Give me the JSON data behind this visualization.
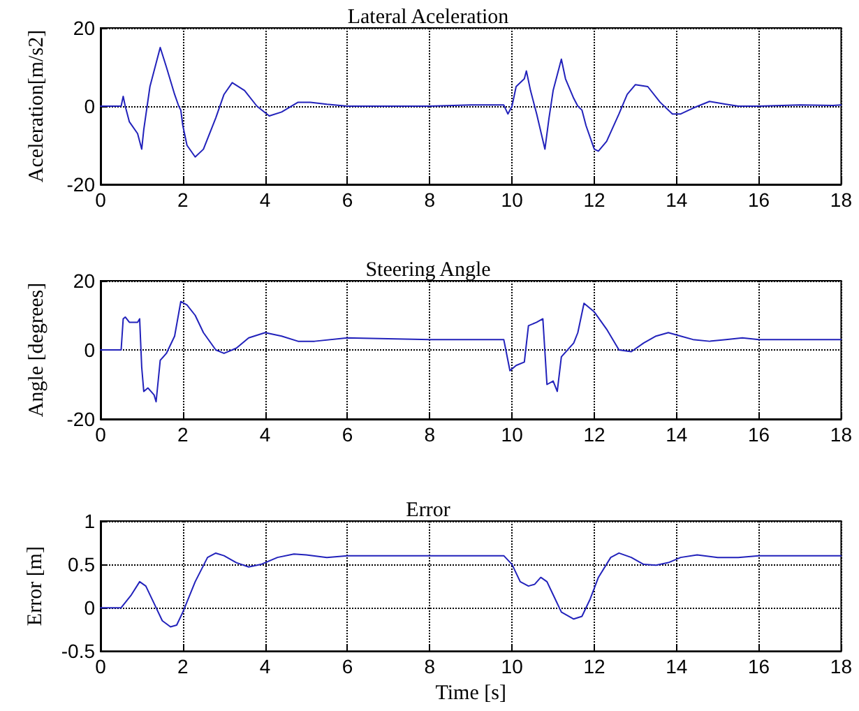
{
  "chart_data": [
    {
      "type": "line",
      "title": "Lateral Aceleration",
      "ylabel": "Aceleration[m/s2]",
      "xlim": [
        0,
        18
      ],
      "xticks": [
        0,
        2,
        4,
        6,
        8,
        10,
        12,
        14,
        16,
        18
      ],
      "ylim": [
        -20,
        20
      ],
      "yticks": [
        -20,
        0,
        20
      ],
      "grid": true,
      "marker": "none",
      "line_style": "solid",
      "series": [
        {
          "color": "#2222bb",
          "x": [
            0,
            0.5,
            0.55,
            0.6,
            0.7,
            0.9,
            1.0,
            1.05,
            1.2,
            1.45,
            1.6,
            1.8,
            1.9,
            1.95,
            2.0,
            2.1,
            2.3,
            2.5,
            2.8,
            3.0,
            3.2,
            3.5,
            3.8,
            4.1,
            4.4,
            4.8,
            5.1,
            5.5,
            6,
            7,
            8,
            9,
            9.8,
            9.9,
            10.0,
            10.1,
            10.3,
            10.35,
            10.45,
            10.6,
            10.8,
            10.9,
            11.0,
            11.2,
            11.3,
            11.5,
            11.6,
            11.7,
            11.8,
            12.0,
            12.1,
            12.3,
            12.6,
            12.8,
            13.0,
            13.3,
            13.6,
            13.9,
            14.1,
            14.4,
            14.8,
            15.2,
            15.5,
            16,
            17,
            17.8,
            18
          ],
          "values": [
            0,
            0,
            2.5,
            0,
            -4,
            -7,
            -11,
            -6,
            5,
            15,
            10,
            3,
            0,
            -1,
            -5,
            -10,
            -13,
            -11,
            -3,
            3,
            6,
            4,
            0,
            -2.5,
            -1.5,
            1,
            1,
            0.5,
            0,
            0,
            0,
            0.3,
            0.3,
            -2,
            0,
            5,
            7,
            9,
            4,
            -2,
            -11,
            -3,
            4,
            12,
            7,
            2,
            0,
            -1,
            -5,
            -11,
            -11.5,
            -9,
            -2,
            3,
            5.5,
            5,
            1,
            -2,
            -2,
            -0.5,
            1.2,
            0.5,
            0,
            0,
            0.3,
            0.2,
            0.3
          ]
        }
      ]
    },
    {
      "type": "line",
      "title": "Steering Angle",
      "ylabel": "Angle [degrees]",
      "xlim": [
        0,
        18
      ],
      "xticks": [
        0,
        2,
        4,
        6,
        8,
        10,
        12,
        14,
        16,
        18
      ],
      "ylim": [
        -20,
        20
      ],
      "yticks": [
        -20,
        0,
        20
      ],
      "grid": true,
      "marker": "none",
      "line_style": "solid",
      "series": [
        {
          "color": "#2222bb",
          "x": [
            0,
            0.5,
            0.55,
            0.6,
            0.7,
            0.9,
            0.95,
            1.0,
            1.05,
            1.15,
            1.3,
            1.35,
            1.45,
            1.6,
            1.8,
            1.95,
            2.1,
            2.3,
            2.5,
            2.8,
            3.0,
            3.3,
            3.6,
            4.0,
            4.4,
            4.8,
            5.2,
            6,
            8,
            9.8,
            9.95,
            10.1,
            10.3,
            10.4,
            10.6,
            10.75,
            10.85,
            11.0,
            11.1,
            11.2,
            11.5,
            11.6,
            11.75,
            12.0,
            12.3,
            12.6,
            12.9,
            13.2,
            13.5,
            13.8,
            14.1,
            14.4,
            14.8,
            15.2,
            15.6,
            16,
            18
          ],
          "values": [
            0,
            0,
            9,
            9.5,
            8,
            8,
            9,
            -5,
            -12,
            -11,
            -13,
            -15,
            -3,
            -1,
            4,
            14,
            13,
            10,
            5,
            0,
            -1,
            0.5,
            3.5,
            5,
            4,
            2.5,
            2.5,
            3.5,
            3,
            3,
            -6,
            -4.5,
            -3.5,
            7,
            8,
            9,
            -10,
            -9,
            -12,
            -2,
            2,
            5,
            13.5,
            11,
            6,
            0,
            -0.5,
            2,
            4,
            5,
            4,
            3,
            2.5,
            3,
            3.5,
            3,
            3
          ]
        }
      ]
    },
    {
      "type": "line",
      "title": "Error",
      "xlabel": "Time [s]",
      "ylabel": "Error [m]",
      "xlim": [
        0,
        18
      ],
      "xticks": [
        0,
        2,
        4,
        6,
        8,
        10,
        12,
        14,
        16,
        18
      ],
      "ylim": [
        -0.5,
        1
      ],
      "yticks": [
        -0.5,
        0,
        0.5,
        1
      ],
      "grid": true,
      "marker": "none",
      "line_style": "solid",
      "series": [
        {
          "color": "#2222bb",
          "x": [
            0,
            0.5,
            0.75,
            0.95,
            1.1,
            1.3,
            1.5,
            1.7,
            1.85,
            2.0,
            2.3,
            2.6,
            2.8,
            3.0,
            3.3,
            3.6,
            3.9,
            4.3,
            4.7,
            5.0,
            5.5,
            6,
            8,
            9.8,
            10.0,
            10.2,
            10.4,
            10.55,
            10.7,
            10.85,
            11.0,
            11.2,
            11.5,
            11.7,
            11.9,
            12.1,
            12.4,
            12.6,
            12.9,
            13.2,
            13.5,
            13.8,
            14.1,
            14.5,
            15.0,
            15.5,
            16,
            18
          ],
          "values": [
            0,
            0,
            0.15,
            0.3,
            0.25,
            0.05,
            -0.15,
            -0.22,
            -0.2,
            -0.05,
            0.3,
            0.58,
            0.63,
            0.6,
            0.52,
            0.47,
            0.5,
            0.58,
            0.62,
            0.61,
            0.58,
            0.6,
            0.6,
            0.6,
            0.5,
            0.3,
            0.25,
            0.27,
            0.35,
            0.3,
            0.15,
            -0.05,
            -0.13,
            -0.1,
            0.1,
            0.35,
            0.58,
            0.63,
            0.58,
            0.5,
            0.49,
            0.52,
            0.58,
            0.61,
            0.58,
            0.58,
            0.6,
            0.6
          ]
        }
      ]
    }
  ]
}
